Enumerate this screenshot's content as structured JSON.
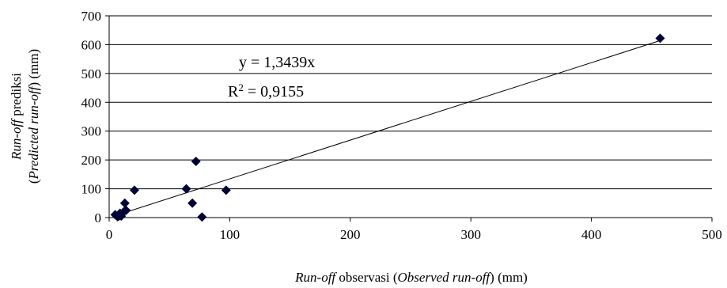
{
  "chart_data": {
    "type": "scatter",
    "xlabel": {
      "parts": [
        {
          "text": "Run-off",
          "italic": true
        },
        {
          "text": " observasi (",
          "italic": false
        },
        {
          "text": "Observed run-off",
          "italic": true
        },
        {
          "text": ") (mm)",
          "italic": false
        }
      ]
    },
    "ylabel": {
      "line1": [
        {
          "text": "Run-off",
          "italic": true
        },
        {
          "text": " prediksi",
          "italic": false
        }
      ],
      "line2": [
        {
          "text": "(",
          "italic": false
        },
        {
          "text": "Predicted run-off",
          "italic": true
        },
        {
          "text": ") (mm)",
          "italic": false
        }
      ]
    },
    "xlim": [
      0,
      500
    ],
    "ylim": [
      0,
      700
    ],
    "xticks": [
      0,
      100,
      200,
      300,
      400,
      500
    ],
    "yticks": [
      0,
      100,
      200,
      300,
      400,
      500,
      600,
      700
    ],
    "grid": "horizontal",
    "marker": "diamond",
    "marker_color": "#000033",
    "points": [
      {
        "x": 5,
        "y": 10
      },
      {
        "x": 7,
        "y": 3
      },
      {
        "x": 8,
        "y": 5
      },
      {
        "x": 9,
        "y": 15
      },
      {
        "x": 10,
        "y": 5
      },
      {
        "x": 12,
        "y": 20
      },
      {
        "x": 13,
        "y": 50
      },
      {
        "x": 14,
        "y": 25
      },
      {
        "x": 21,
        "y": 95
      },
      {
        "x": 64,
        "y": 100
      },
      {
        "x": 69,
        "y": 50
      },
      {
        "x": 72,
        "y": 195
      },
      {
        "x": 77,
        "y": 2
      },
      {
        "x": 97,
        "y": 95
      },
      {
        "x": 457,
        "y": 622
      }
    ],
    "trendline": {
      "slope": 1.3439,
      "intercept": 0,
      "x_start": 10,
      "x_end": 457
    },
    "annotations": {
      "equation": "y = 1,3439x",
      "r2_prefix": "R",
      "r2_sup": "2",
      "r2_value": " = 0,9155"
    }
  }
}
